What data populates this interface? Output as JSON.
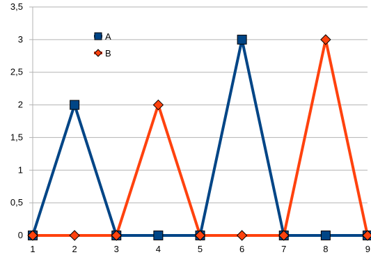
{
  "chart_data": {
    "type": "line",
    "title": "",
    "xlabel": "",
    "ylabel": "",
    "x": [
      1,
      2,
      3,
      4,
      5,
      6,
      7,
      8,
      9
    ],
    "x_tick_labels": [
      "1",
      "2",
      "3",
      "4",
      "5",
      "6",
      "7",
      "8",
      "9"
    ],
    "ylim": [
      0,
      3.5
    ],
    "y_ticks": [
      0,
      0.5,
      1,
      1.5,
      2,
      2.5,
      3,
      3.5
    ],
    "y_tick_labels": [
      "0",
      "0,5",
      "1",
      "1,5",
      "2",
      "2,5",
      "3",
      "3,5"
    ],
    "grid": "horizontal",
    "legend_position": "top-left",
    "series": [
      {
        "name": "A",
        "values": [
          0,
          2,
          0,
          0,
          0,
          3,
          0,
          0,
          0
        ],
        "color": "#004586",
        "marker": "square"
      },
      {
        "name": "B",
        "values": [
          0,
          0,
          0,
          2,
          0,
          0,
          0,
          3,
          0
        ],
        "color": "#ff420e",
        "marker": "diamond"
      }
    ]
  }
}
